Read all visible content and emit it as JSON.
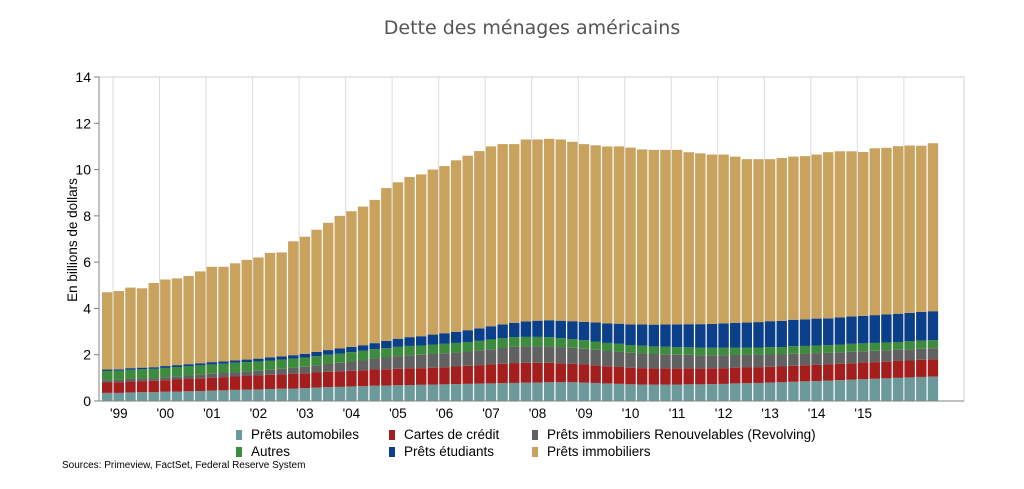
{
  "chart_data": {
    "type": "bar",
    "stacked": true,
    "title": "Dette des ménages américains",
    "ylabel": "En billions de dollars",
    "xlabel": "",
    "ylim": [
      0,
      14
    ],
    "yticks": [
      0,
      2,
      4,
      6,
      8,
      10,
      12,
      14
    ],
    "year_labels": [
      "'99",
      "'00",
      "'01",
      "'02",
      "'03",
      "'04",
      "'05",
      "'06",
      "'07",
      "'08",
      "'09",
      "'10",
      "'11",
      "'12",
      "'13",
      "'14",
      "'15"
    ],
    "bars_per_year": 4,
    "first_label_bar_index": 1,
    "source": "Sources: Primeview, FactSet, Federal Reserve System",
    "series": [
      {
        "name": "Prêts automobiles",
        "color": "#6c9a9a",
        "values": [
          0.35,
          0.35,
          0.37,
          0.38,
          0.38,
          0.4,
          0.41,
          0.42,
          0.43,
          0.45,
          0.46,
          0.48,
          0.49,
          0.5,
          0.52,
          0.53,
          0.54,
          0.56,
          0.58,
          0.6,
          0.61,
          0.63,
          0.64,
          0.66,
          0.67,
          0.68,
          0.69,
          0.7,
          0.71,
          0.72,
          0.73,
          0.74,
          0.75,
          0.76,
          0.77,
          0.78,
          0.79,
          0.8,
          0.81,
          0.81,
          0.81,
          0.8,
          0.78,
          0.76,
          0.74,
          0.72,
          0.71,
          0.71,
          0.71,
          0.71,
          0.72,
          0.72,
          0.73,
          0.74,
          0.76,
          0.77,
          0.78,
          0.8,
          0.81,
          0.83,
          0.85,
          0.86,
          0.88,
          0.9,
          0.92,
          0.94,
          0.96,
          0.98,
          1.0,
          1.02,
          1.04,
          1.06
        ]
      },
      {
        "name": "Cartes de crédit",
        "color": "#a51e1e",
        "values": [
          0.45,
          0.46,
          0.47,
          0.48,
          0.49,
          0.5,
          0.52,
          0.53,
          0.55,
          0.56,
          0.57,
          0.58,
          0.59,
          0.6,
          0.61,
          0.62,
          0.63,
          0.64,
          0.65,
          0.66,
          0.67,
          0.68,
          0.69,
          0.7,
          0.7,
          0.71,
          0.72,
          0.72,
          0.73,
          0.74,
          0.76,
          0.78,
          0.8,
          0.82,
          0.84,
          0.86,
          0.86,
          0.85,
          0.84,
          0.82,
          0.8,
          0.78,
          0.76,
          0.74,
          0.73,
          0.72,
          0.71,
          0.7,
          0.7,
          0.69,
          0.69,
          0.68,
          0.68,
          0.68,
          0.68,
          0.68,
          0.67,
          0.68,
          0.68,
          0.69,
          0.69,
          0.7,
          0.7,
          0.71,
          0.71,
          0.72,
          0.72,
          0.72,
          0.73,
          0.73,
          0.74,
          0.74
        ]
      },
      {
        "name": "Prêts immobiliers Renouvelables (Revolving)",
        "color": "#616161",
        "values": [
          0.1,
          0.1,
          0.11,
          0.11,
          0.12,
          0.13,
          0.14,
          0.15,
          0.16,
          0.17,
          0.18,
          0.19,
          0.2,
          0.21,
          0.22,
          0.24,
          0.26,
          0.28,
          0.31,
          0.34,
          0.37,
          0.4,
          0.44,
          0.48,
          0.51,
          0.55,
          0.57,
          0.58,
          0.59,
          0.6,
          0.61,
          0.62,
          0.64,
          0.66,
          0.68,
          0.7,
          0.71,
          0.71,
          0.71,
          0.7,
          0.69,
          0.68,
          0.67,
          0.66,
          0.65,
          0.64,
          0.63,
          0.62,
          0.61,
          0.6,
          0.59,
          0.58,
          0.57,
          0.56,
          0.55,
          0.54,
          0.54,
          0.53,
          0.52,
          0.52,
          0.51,
          0.51,
          0.5,
          0.5,
          0.5,
          0.49,
          0.49,
          0.49,
          0.48,
          0.48,
          0.48,
          0.48
        ]
      },
      {
        "name": "Autres",
        "color": "#3d8b3d",
        "values": [
          0.4,
          0.4,
          0.4,
          0.4,
          0.4,
          0.4,
          0.4,
          0.4,
          0.4,
          0.4,
          0.4,
          0.4,
          0.4,
          0.4,
          0.4,
          0.4,
          0.4,
          0.4,
          0.4,
          0.4,
          0.4,
          0.4,
          0.4,
          0.4,
          0.4,
          0.4,
          0.4,
          0.4,
          0.41,
          0.41,
          0.41,
          0.41,
          0.41,
          0.42,
          0.42,
          0.42,
          0.41,
          0.41,
          0.4,
          0.39,
          0.38,
          0.37,
          0.36,
          0.35,
          0.35,
          0.34,
          0.34,
          0.33,
          0.33,
          0.33,
          0.32,
          0.32,
          0.32,
          0.32,
          0.32,
          0.32,
          0.32,
          0.32,
          0.32,
          0.33,
          0.33,
          0.33,
          0.33,
          0.33,
          0.34,
          0.34,
          0.34,
          0.34,
          0.34,
          0.35,
          0.35,
          0.35
        ]
      },
      {
        "name": "Prêts étudiants",
        "color": "#0b3f8a",
        "values": [
          0.06,
          0.06,
          0.07,
          0.07,
          0.07,
          0.08,
          0.08,
          0.09,
          0.09,
          0.1,
          0.1,
          0.1,
          0.11,
          0.12,
          0.13,
          0.14,
          0.15,
          0.16,
          0.18,
          0.2,
          0.22,
          0.23,
          0.24,
          0.26,
          0.32,
          0.35,
          0.38,
          0.4,
          0.43,
          0.46,
          0.48,
          0.51,
          0.54,
          0.57,
          0.6,
          0.62,
          0.67,
          0.7,
          0.73,
          0.75,
          0.77,
          0.79,
          0.82,
          0.84,
          0.87,
          0.89,
          0.92,
          0.94,
          0.96,
          0.98,
          1.0,
          1.02,
          1.03,
          1.05,
          1.07,
          1.08,
          1.1,
          1.12,
          1.13,
          1.14,
          1.15,
          1.16,
          1.16,
          1.17,
          1.18,
          1.19,
          1.2,
          1.21,
          1.22,
          1.23,
          1.24,
          1.25
        ]
      },
      {
        "name": "Prêts immobiliers",
        "color": "#c9a25d",
        "values": [
          3.34,
          3.38,
          3.48,
          3.43,
          3.64,
          3.74,
          3.75,
          3.81,
          3.97,
          4.12,
          4.09,
          4.2,
          4.31,
          4.37,
          4.52,
          4.49,
          4.92,
          5.06,
          5.28,
          5.5,
          5.73,
          5.86,
          5.99,
          6.19,
          6.6,
          6.76,
          6.92,
          6.99,
          7.13,
          7.22,
          7.41,
          7.54,
          7.66,
          7.77,
          7.79,
          7.72,
          7.86,
          7.83,
          7.84,
          7.83,
          7.75,
          7.68,
          7.66,
          7.65,
          7.66,
          7.64,
          7.56,
          7.55,
          7.54,
          7.54,
          7.43,
          7.38,
          7.32,
          7.3,
          7.18,
          7.06,
          7.04,
          7.0,
          7.04,
          7.05,
          7.05,
          7.09,
          7.18,
          7.18,
          7.14,
          7.08,
          7.21,
          7.2,
          7.24,
          7.23,
          7.18,
          7.26
        ]
      }
    ]
  }
}
